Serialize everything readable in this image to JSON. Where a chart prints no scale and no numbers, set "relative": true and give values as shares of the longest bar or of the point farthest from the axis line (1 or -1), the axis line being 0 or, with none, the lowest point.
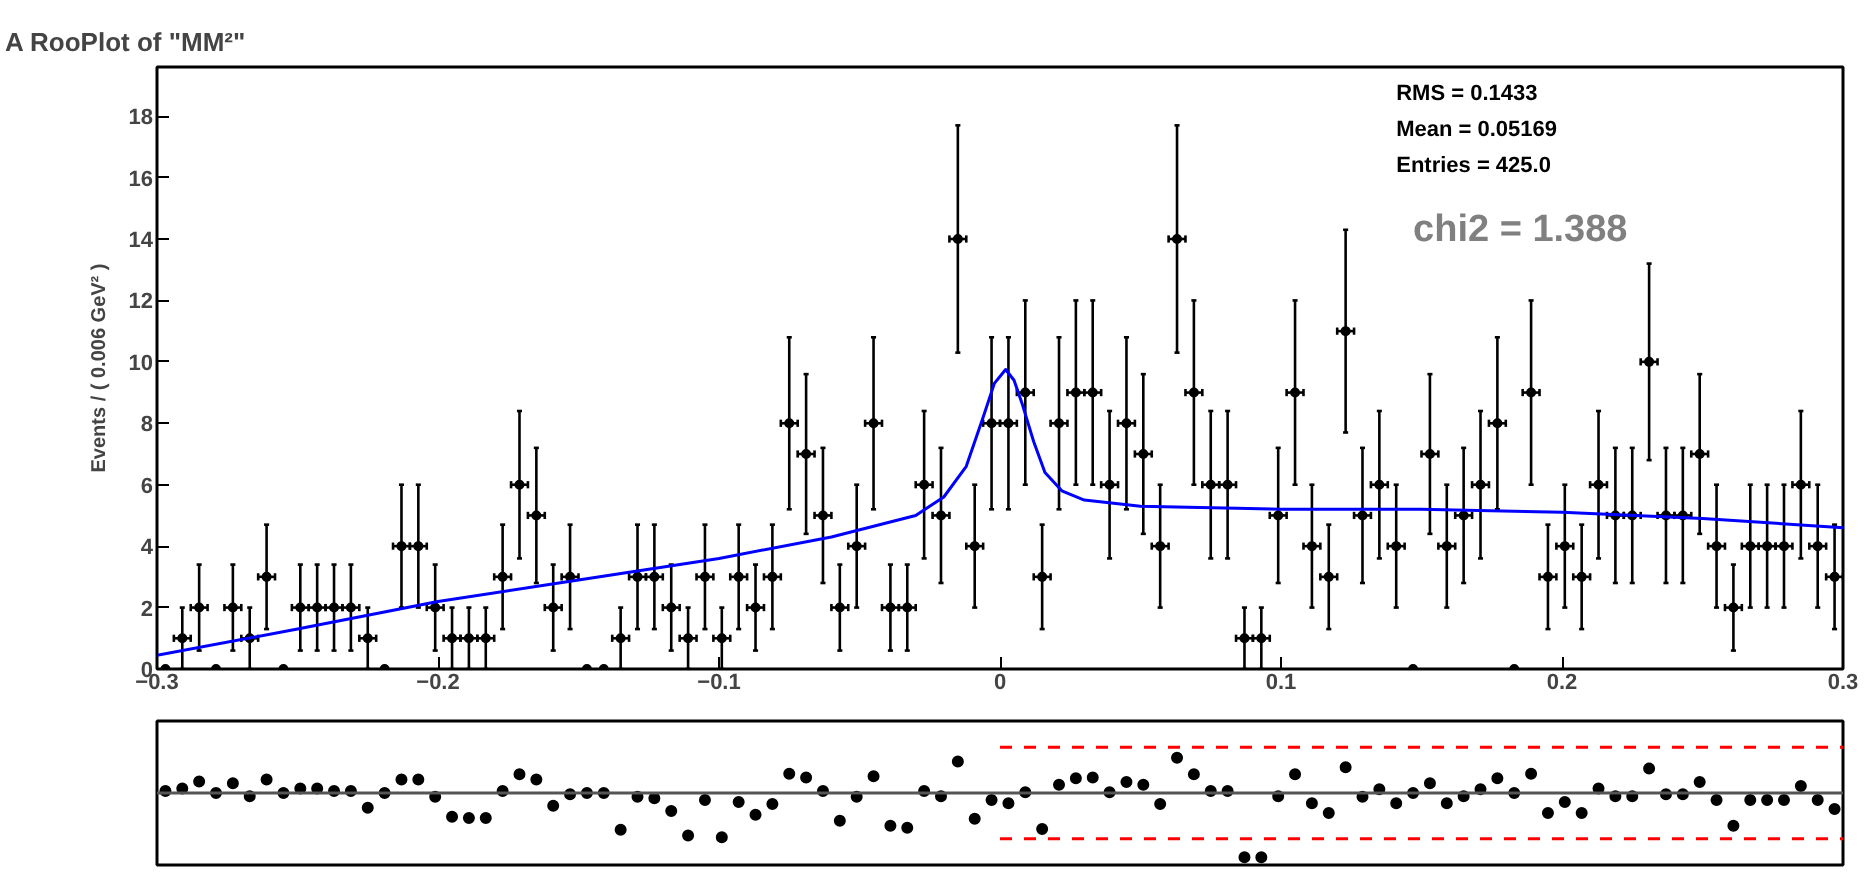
{
  "chart_data": [
    {
      "type": "scatter",
      "title": "A RooPlot of \"MM²\"",
      "ylabel": "Events / ( 0.006 GeV² )",
      "annotations": [
        "RMS =  0.1433",
        "Mean =  0.05169",
        "Entries =  425.0",
        "chi2 = 1.388"
      ],
      "xlim": [
        -0.3,
        0.3
      ],
      "xticks": [
        -0.3,
        -0.2,
        -0.1,
        0,
        0.1,
        0.2,
        0.3
      ],
      "ylim": [
        0,
        19.6
      ],
      "yticks": [
        0,
        2,
        4,
        6,
        8,
        10,
        12,
        14,
        16,
        18
      ],
      "grid": false,
      "marker": "circle",
      "x": [
        -0.297,
        -0.291,
        -0.285,
        -0.279,
        -0.273,
        -0.267,
        -0.261,
        -0.255,
        -0.249,
        -0.243,
        -0.237,
        -0.231,
        -0.225,
        -0.219,
        -0.213,
        -0.207,
        -0.201,
        -0.195,
        -0.189,
        -0.183,
        -0.177,
        -0.171,
        -0.165,
        -0.159,
        -0.153,
        -0.147,
        -0.141,
        -0.135,
        -0.129,
        -0.123,
        -0.117,
        -0.111,
        -0.105,
        -0.099,
        -0.093,
        -0.087,
        -0.081,
        -0.075,
        -0.069,
        -0.063,
        -0.057,
        -0.051,
        -0.045,
        -0.039,
        -0.033,
        -0.027,
        -0.021,
        -0.015,
        -0.009,
        -0.003,
        0.003,
        0.009,
        0.015,
        0.021,
        0.027,
        0.033,
        0.039,
        0.045,
        0.051,
        0.057,
        0.063,
        0.069,
        0.075,
        0.081,
        0.087,
        0.093,
        0.099,
        0.105,
        0.111,
        0.117,
        0.123,
        0.129,
        0.135,
        0.141,
        0.147,
        0.153,
        0.159,
        0.165,
        0.171,
        0.177,
        0.183,
        0.189,
        0.195,
        0.201,
        0.207,
        0.213,
        0.219,
        0.225,
        0.231,
        0.237,
        0.243,
        0.249,
        0.255,
        0.261,
        0.267,
        0.273,
        0.279,
        0.285,
        0.291,
        0.297
      ],
      "series": [
        {
          "color": "#000000",
          "values": [
            0,
            1,
            2,
            0,
            2,
            1,
            3,
            0,
            2,
            2,
            2,
            2,
            1,
            0,
            4,
            4,
            2,
            1,
            1,
            1,
            3,
            6,
            5,
            2,
            3,
            0,
            0,
            1,
            3,
            3,
            2,
            1,
            3,
            1,
            3,
            2,
            3,
            8,
            7,
            5,
            2,
            4,
            8,
            2,
            2,
            6,
            5,
            14,
            4,
            8,
            8,
            9,
            3,
            8,
            9,
            9,
            6,
            8,
            7,
            4,
            14,
            9,
            6,
            6,
            1,
            1,
            5,
            9,
            4,
            3,
            11,
            5,
            6,
            4,
            0,
            7,
            4,
            5,
            6,
            8,
            0,
            9,
            3,
            4,
            3,
            6,
            5,
            5,
            10,
            5,
            5,
            7,
            4,
            2,
            4,
            4,
            4,
            6,
            4,
            3
          ],
          "errors": [
            null,
            1,
            1.4,
            null,
            1.4,
            1,
            1.7,
            null,
            1.4,
            1.4,
            1.4,
            1.4,
            1,
            null,
            2,
            2,
            1.4,
            1,
            1,
            1,
            1.7,
            2.4,
            2.2,
            1.4,
            1.7,
            null,
            null,
            1,
            1.7,
            1.7,
            1.4,
            1,
            1.7,
            1,
            1.7,
            1.4,
            1.7,
            2.8,
            2.6,
            2.2,
            1.4,
            2,
            2.8,
            1.4,
            1.4,
            2.4,
            2.2,
            3.7,
            2,
            2.8,
            2.8,
            3,
            1.7,
            2.8,
            3,
            3,
            2.4,
            2.8,
            2.6,
            2,
            3.7,
            3,
            2.4,
            2.4,
            1,
            1,
            2.2,
            3,
            2,
            1.7,
            3.3,
            2.2,
            2.4,
            2,
            null,
            2.6,
            2,
            2.2,
            2.4,
            2.8,
            null,
            3,
            1.7,
            2,
            1.7,
            2.4,
            2.2,
            2.2,
            3.2,
            2.2,
            2.2,
            2.6,
            2,
            1.4,
            2,
            2,
            2,
            2.4,
            2,
            1.7
          ],
          "xerrors": [
            null,
            0.003,
            0.003,
            null,
            0.003,
            0.003,
            0.003,
            null,
            0.003,
            0.003,
            0.003,
            0.003,
            0.003,
            null,
            0.003,
            0.003,
            0.003,
            0.003,
            0.003,
            0.003,
            0.003,
            0.003,
            0.003,
            0.003,
            0.003,
            null,
            null,
            0.003,
            0.003,
            0.003,
            0.003,
            0.003,
            0.003,
            0.003,
            0.003,
            0.003,
            0.003,
            0.003,
            0.003,
            0.003,
            0.003,
            0.003,
            0.003,
            0.003,
            0.003,
            0.003,
            0.003,
            0.003,
            0.003,
            0.003,
            0.003,
            0.003,
            0.003,
            0.003,
            0.003,
            0.003,
            0.003,
            0.003,
            0.003,
            0.003,
            0.003,
            0.003,
            0.003,
            0.003,
            0.003,
            0.003,
            0.003,
            0.003,
            0.003,
            0.003,
            0.003,
            0.003,
            0.003,
            0.003,
            null,
            0.003,
            0.003,
            0.003,
            0.003,
            0.003,
            null,
            0.003,
            0.003,
            0.003,
            0.003,
            0.003,
            0.003,
            0.003,
            0.003,
            0.003,
            0.003,
            0.003,
            0.003,
            0.003,
            0.003,
            0.003,
            0.003,
            0.003,
            0.003,
            0.003
          ]
        },
        {
          "type": "line",
          "marker": "none",
          "color": "#0000ff",
          "x": [
            -0.3,
            -0.25,
            -0.2,
            -0.15,
            -0.1,
            -0.06,
            -0.03,
            -0.02,
            -0.012,
            -0.006,
            -0.002,
            0.002,
            0.005,
            0.008,
            0.012,
            0.016,
            0.022,
            0.03,
            0.05,
            0.1,
            0.15,
            0.2,
            0.25,
            0.3
          ],
          "values": [
            0.45,
            1.3,
            2.2,
            2.9,
            3.6,
            4.3,
            5.0,
            5.6,
            6.6,
            8.2,
            9.3,
            9.75,
            9.4,
            8.6,
            7.4,
            6.4,
            5.8,
            5.5,
            5.3,
            5.2,
            5.2,
            5.1,
            4.9,
            4.6
          ]
        }
      ]
    },
    {
      "type": "scatter",
      "relative": true,
      "xlim": [
        -0.3,
        0.3
      ],
      "marker": "circle",
      "x": [
        -0.297,
        -0.291,
        -0.285,
        -0.279,
        -0.273,
        -0.267,
        -0.261,
        -0.255,
        -0.249,
        -0.243,
        -0.237,
        -0.231,
        -0.225,
        -0.219,
        -0.213,
        -0.207,
        -0.201,
        -0.195,
        -0.189,
        -0.183,
        -0.177,
        -0.171,
        -0.165,
        -0.159,
        -0.153,
        -0.147,
        -0.141,
        -0.135,
        -0.129,
        -0.123,
        -0.117,
        -0.111,
        -0.105,
        -0.099,
        -0.093,
        -0.087,
        -0.081,
        -0.075,
        -0.069,
        -0.063,
        -0.057,
        -0.051,
        -0.045,
        -0.039,
        -0.033,
        -0.027,
        -0.021,
        -0.015,
        -0.009,
        -0.003,
        0.003,
        0.009,
        0.015,
        0.021,
        0.027,
        0.033,
        0.039,
        0.045,
        0.051,
        0.057,
        0.063,
        0.069,
        0.075,
        0.081,
        0.087,
        0.093,
        0.099,
        0.105,
        0.111,
        0.117,
        0.123,
        0.129,
        0.135,
        0.141,
        0.147,
        0.153,
        0.159,
        0.165,
        0.171,
        0.177,
        0.183,
        0.189,
        0.195,
        0.201,
        0.207,
        0.213,
        0.219,
        0.225,
        0.231,
        0.237,
        0.243,
        0.249,
        0.255,
        0.261,
        0.267,
        0.273,
        0.279,
        0.285,
        0.291,
        0.297
      ],
      "ref_lines": [
        {
          "axis": "y",
          "value": 0,
          "color": "#555555"
        }
      ],
      "series": [
        {
          "color": "#000000",
          "values": [
            0.03,
            0.07,
            0.18,
            0,
            0.15,
            -0.05,
            0.21,
            0,
            0.07,
            0.07,
            0.03,
            0.03,
            -0.23,
            0,
            0.21,
            0.21,
            -0.06,
            -0.37,
            -0.39,
            -0.39,
            0.03,
            0.29,
            0.21,
            -0.2,
            -0.02,
            0,
            0,
            -0.57,
            -0.06,
            -0.08,
            -0.28,
            -0.66,
            -0.11,
            -0.69,
            -0.14,
            -0.34,
            -0.17,
            0.3,
            0.24,
            0.03,
            -0.43,
            -0.06,
            0.26,
            -0.51,
            -0.54,
            0.03,
            -0.05,
            0.49,
            -0.4,
            -0.11,
            -0.16,
            0.01,
            -0.56,
            0.13,
            0.23,
            0.24,
            0.01,
            0.17,
            0.13,
            -0.17,
            0.55,
            0.29,
            0.03,
            0.03,
            -1,
            -1,
            -0.05,
            0.29,
            -0.16,
            -0.31,
            0.4,
            -0.06,
            0.06,
            -0.16,
            0,
            0.15,
            -0.16,
            -0.05,
            0.06,
            0.23,
            0,
            0.3,
            -0.31,
            -0.14,
            -0.31,
            0.07,
            -0.05,
            -0.05,
            0.38,
            -0.02,
            -0.02,
            0.17,
            -0.11,
            -0.51,
            -0.11,
            -0.11,
            -0.11,
            0.11,
            -0.11,
            -0.25
          ]
        },
        {
          "type": "line",
          "marker": "none",
          "color": "#ff0000",
          "line_style": "dashed",
          "x": [
            0,
            0.3
          ],
          "values": [
            0.71,
            0.71
          ]
        },
        {
          "type": "line",
          "marker": "none",
          "color": "#ff0000",
          "line_style": "dashed",
          "x": [
            0,
            0.3
          ],
          "values": [
            -0.71,
            -0.71
          ]
        }
      ]
    }
  ]
}
